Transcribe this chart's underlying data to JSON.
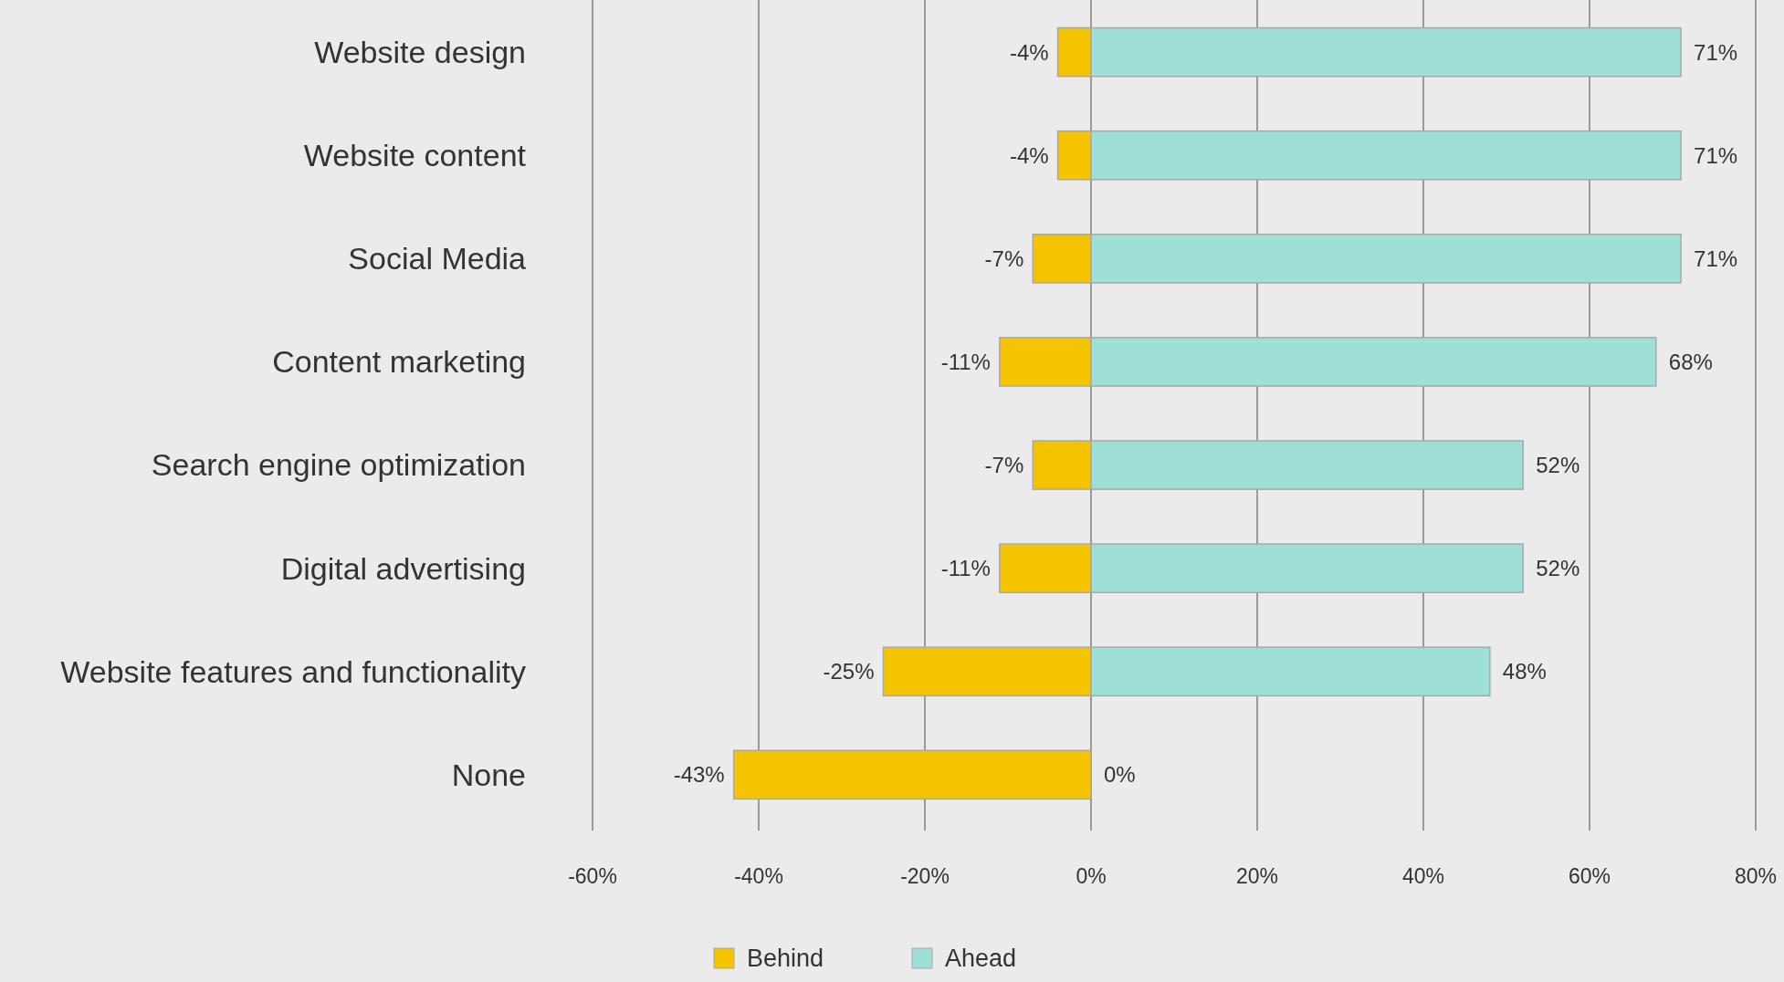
{
  "chart_data": {
    "type": "bar",
    "orientation": "horizontal",
    "stacked": true,
    "categories": [
      "Website design",
      "Website content",
      "Social Media",
      "Content marketing",
      "Search engine optimization",
      "Digital advertising",
      "Website features and functionality",
      "None"
    ],
    "series": [
      {
        "name": "Behind",
        "color": "#f5c400",
        "values": [
          -4,
          -4,
          -7,
          -11,
          -7,
          -11,
          -25,
          -43
        ],
        "value_labels": [
          "-4%",
          "-4%",
          "-7%",
          "-11%",
          "-7%",
          "-11%",
          "-25%",
          "-43%"
        ]
      },
      {
        "name": "Ahead",
        "color": "#9fe0d6",
        "values": [
          71,
          71,
          71,
          68,
          52,
          52,
          48,
          0
        ],
        "value_labels": [
          "71%",
          "71%",
          "71%",
          "68%",
          "52%",
          "52%",
          "48%",
          "0%"
        ]
      }
    ],
    "xlim": [
      -60,
      80
    ],
    "xticks": [
      {
        "value": -60,
        "label": "-60%"
      },
      {
        "value": -40,
        "label": "-40%"
      },
      {
        "value": -20,
        "label": "-20%"
      },
      {
        "value": 0,
        "label": "0%"
      },
      {
        "value": 20,
        "label": "20%"
      },
      {
        "value": 40,
        "label": "40%"
      },
      {
        "value": 60,
        "label": "60%"
      },
      {
        "value": 80,
        "label": "80%"
      }
    ],
    "grid": "x",
    "legend": "bottom"
  }
}
